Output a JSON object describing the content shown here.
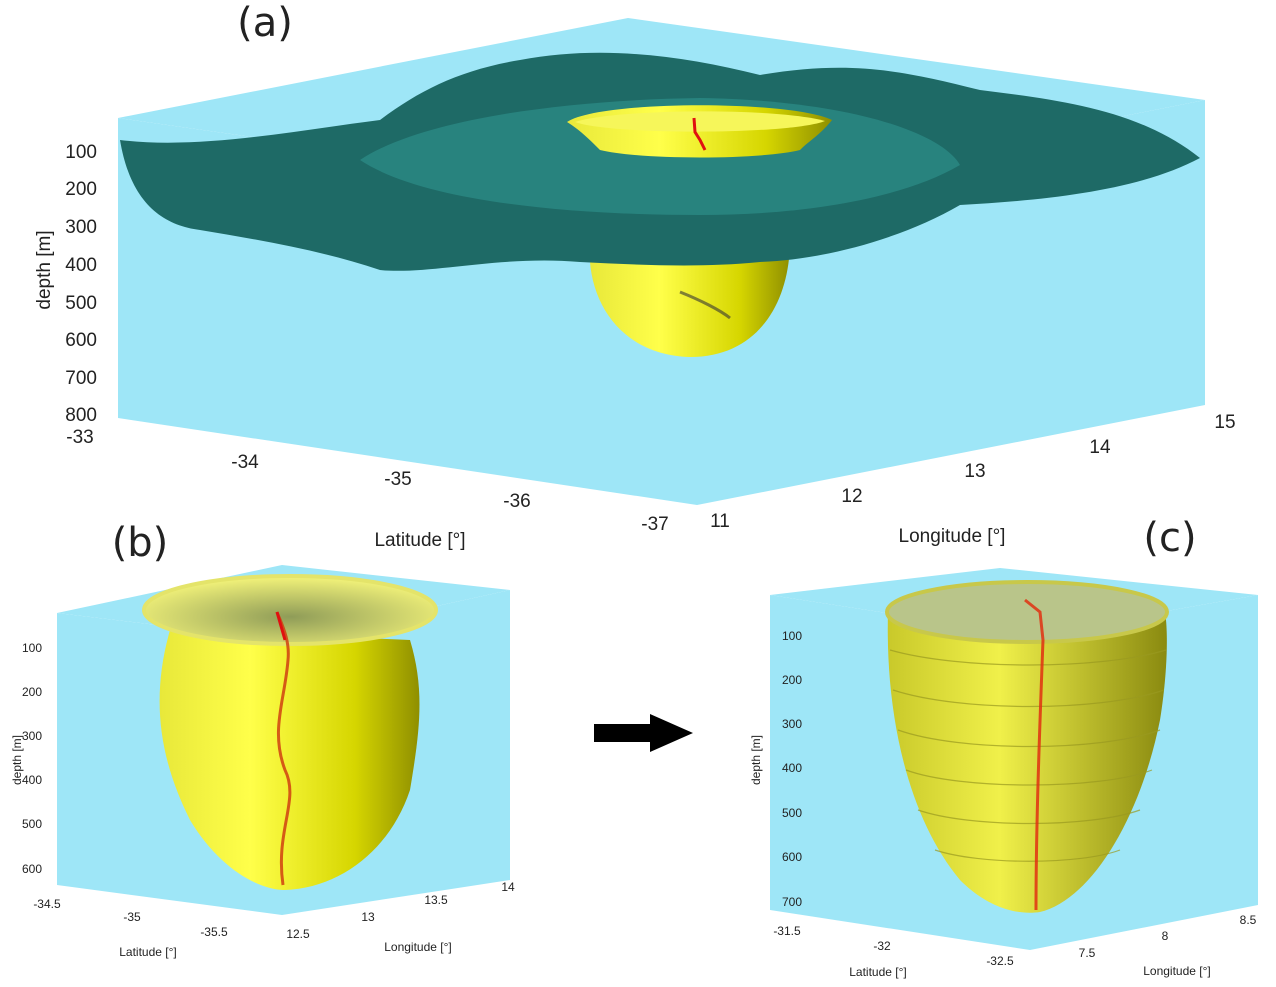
{
  "panels": [
    {
      "label": "(a)",
      "zlabel": "depth [m]",
      "zticks": [
        100,
        200,
        300,
        400,
        500,
        600,
        700,
        800
      ],
      "xlabel": "Latitude [°]",
      "xticks": [
        -33,
        -34,
        -35,
        -36,
        -37
      ],
      "ylabel": "Longitude [°]",
      "yticks": [
        11,
        12,
        13,
        14,
        15
      ]
    },
    {
      "label": "(b)",
      "zlabel": "depth [m]",
      "zticks": [
        100,
        200,
        300,
        400,
        500,
        600
      ],
      "xlabel": "Latitude [°]",
      "xticks": [
        -34.5,
        -35,
        -35.5
      ],
      "ylabel": "Longitude [°]",
      "yticks": [
        12.5,
        13,
        13.5,
        14
      ]
    },
    {
      "label": "(c)",
      "zlabel": "depth [m]",
      "zticks": [
        100,
        200,
        300,
        400,
        500,
        600,
        700
      ],
      "xlabel": "Latitude [°]",
      "xticks": [
        -31.5,
        -32,
        -32.5
      ],
      "ylabel": "Longitude [°]",
      "yticks": [
        7.5,
        8,
        8.5
      ]
    }
  ]
}
